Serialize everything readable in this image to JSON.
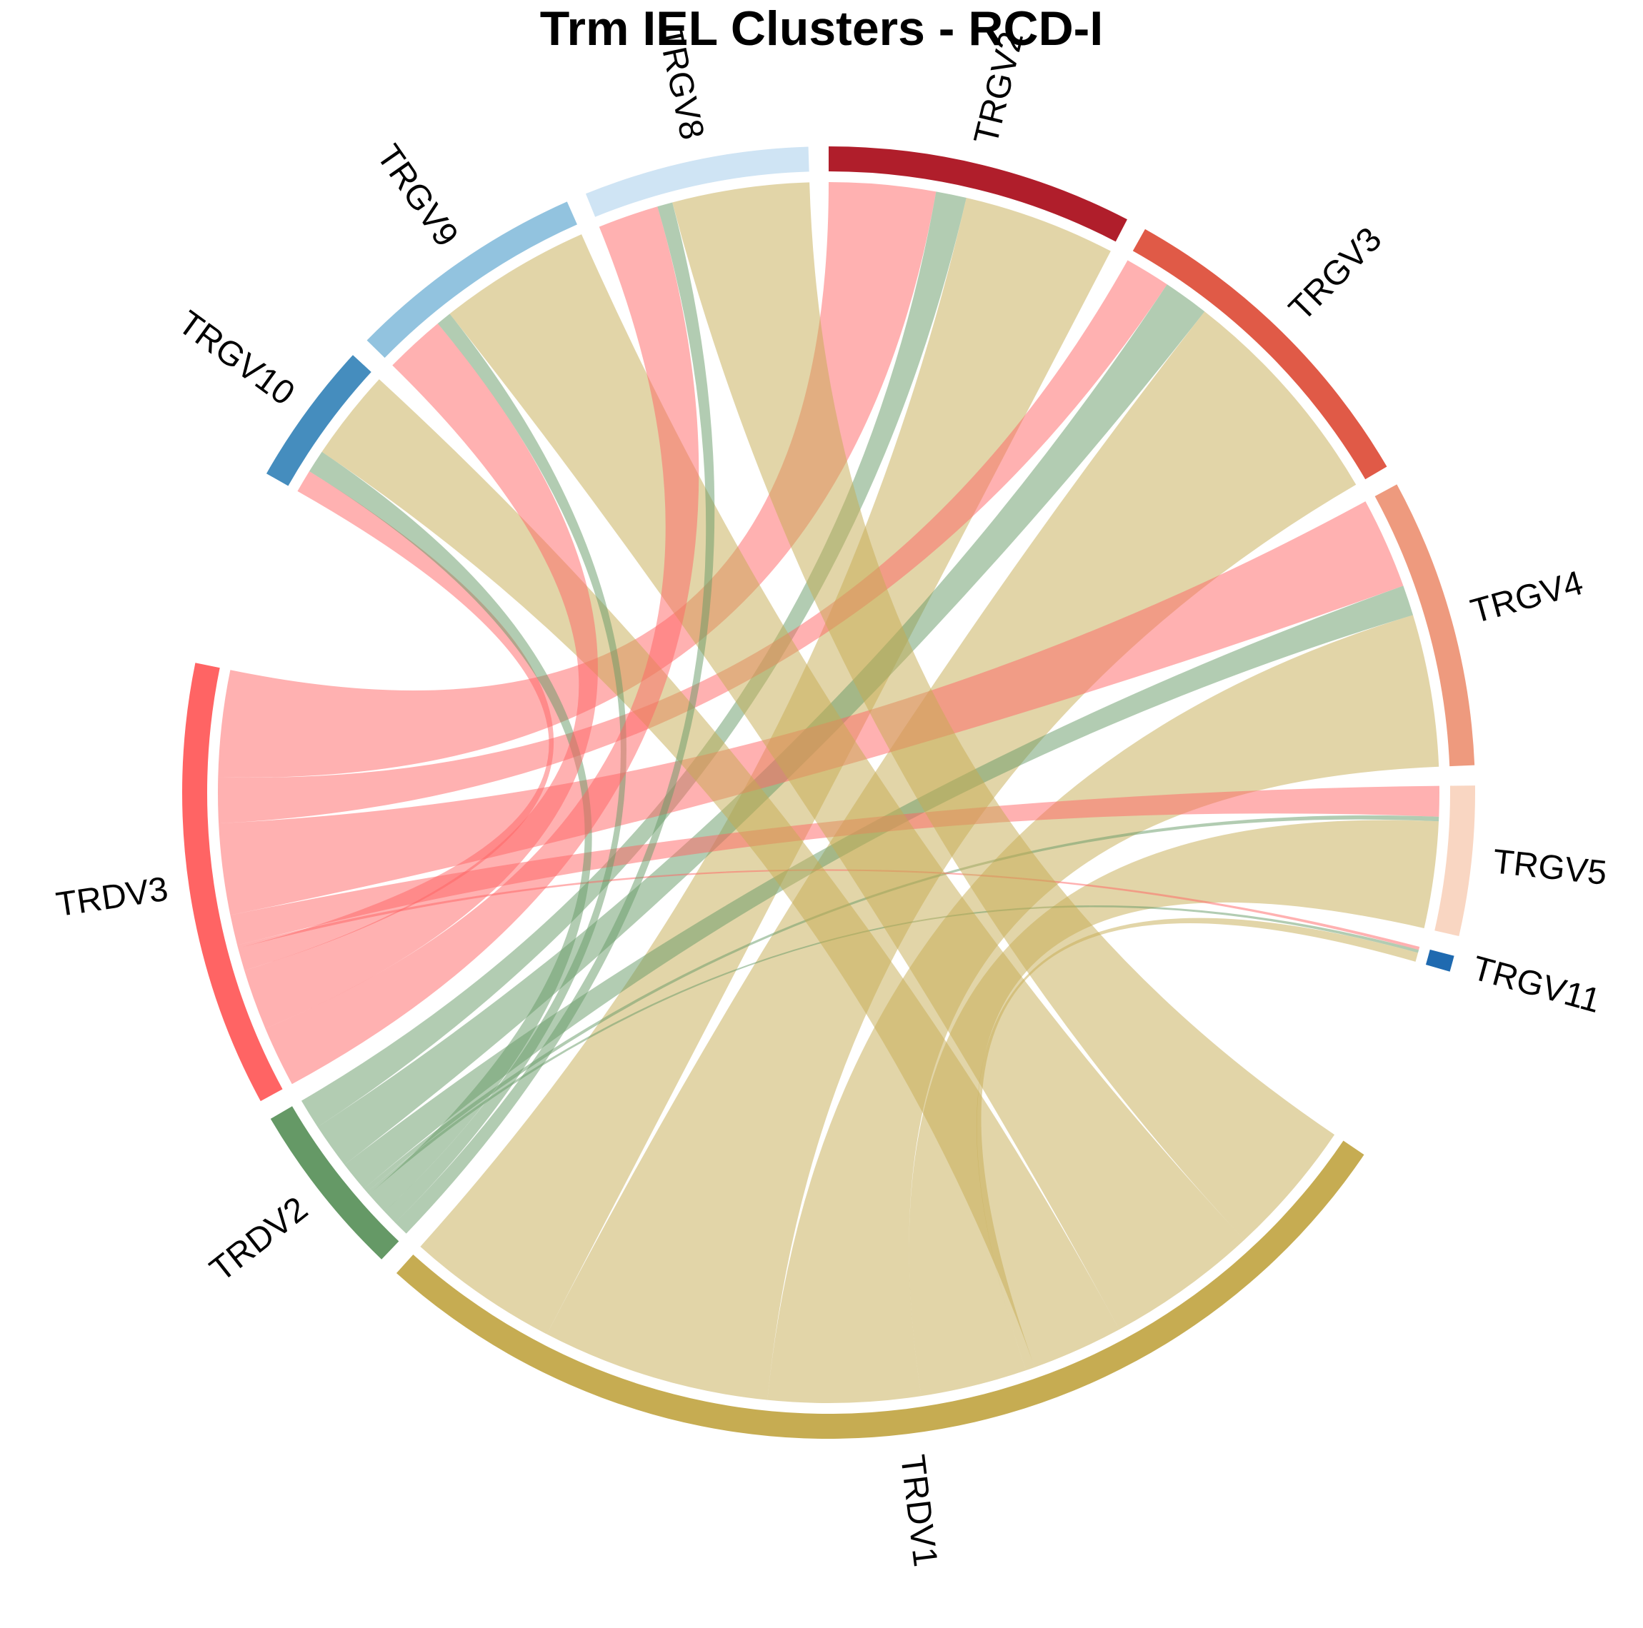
{
  "chart_data": {
    "type": "chord",
    "title": "Trm IEL Clusters - RCD-I",
    "sectors": [
      {
        "name": "TRGV2",
        "color": "#B01E2B"
      },
      {
        "name": "TRGV3",
        "color": "#E05A47"
      },
      {
        "name": "TRGV4",
        "color": "#EE9A7E"
      },
      {
        "name": "TRGV5",
        "color": "#F9D6C2"
      },
      {
        "name": "TRGV11",
        "color": "#1F6AB0"
      },
      {
        "name": "TRDV1",
        "color": "#C6AC52"
      },
      {
        "name": "TRDV2",
        "color": "#659966"
      },
      {
        "name": "TRDV3",
        "color": "#FF6464"
      },
      {
        "name": "TRGV10",
        "color": "#458DBE"
      },
      {
        "name": "TRGV9",
        "color": "#92C3DF"
      },
      {
        "name": "TRGV8",
        "color": "#CFE4F4"
      }
    ],
    "links": [
      {
        "from": "TRGV2",
        "to": "TRDV1",
        "value": 10
      },
      {
        "from": "TRGV2",
        "to": "TRDV2",
        "value": 2
      },
      {
        "from": "TRGV2",
        "to": "TRDV3",
        "value": 7
      },
      {
        "from": "TRGV3",
        "to": "TRDV1",
        "value": 15
      },
      {
        "from": "TRGV3",
        "to": "TRDV2",
        "value": 3
      },
      {
        "from": "TRGV3",
        "to": "TRDV3",
        "value": 3
      },
      {
        "from": "TRGV4",
        "to": "TRDV1",
        "value": 10
      },
      {
        "from": "TRGV4",
        "to": "TRDV2",
        "value": 2
      },
      {
        "from": "TRGV4",
        "to": "TRDV3",
        "value": 6
      },
      {
        "from": "TRGV5",
        "to": "TRDV1",
        "value": 7
      },
      {
        "from": "TRGV5",
        "to": "TRDV2",
        "value": 0.3
      },
      {
        "from": "TRGV5",
        "to": "TRDV3",
        "value": 2
      },
      {
        "from": "TRGV11",
        "to": "TRDV1",
        "value": 0.6
      },
      {
        "from": "TRGV11",
        "to": "TRDV2",
        "value": 0.2
      },
      {
        "from": "TRGV11",
        "to": "TRDV3",
        "value": 0.2
      },
      {
        "from": "TRGV10",
        "to": "TRDV1",
        "value": 6
      },
      {
        "from": "TRGV10",
        "to": "TRDV2",
        "value": 1.5
      },
      {
        "from": "TRGV10",
        "to": "TRDV3",
        "value": 1.5
      },
      {
        "from": "TRGV9",
        "to": "TRDV1",
        "value": 10
      },
      {
        "from": "TRGV9",
        "to": "TRDV2",
        "value": 1
      },
      {
        "from": "TRGV9",
        "to": "TRDV3",
        "value": 4
      },
      {
        "from": "TRGV8",
        "to": "TRDV1",
        "value": 9
      },
      {
        "from": "TRGV8",
        "to": "TRDV2",
        "value": 1
      },
      {
        "from": "TRGV8",
        "to": "TRDV3",
        "value": 4
      }
    ],
    "link_colors": {
      "TRDV1": "#C6AC52",
      "TRDV2": "#659966",
      "TRDV3": "#FF6464"
    },
    "link_opacity": 0.5
  }
}
